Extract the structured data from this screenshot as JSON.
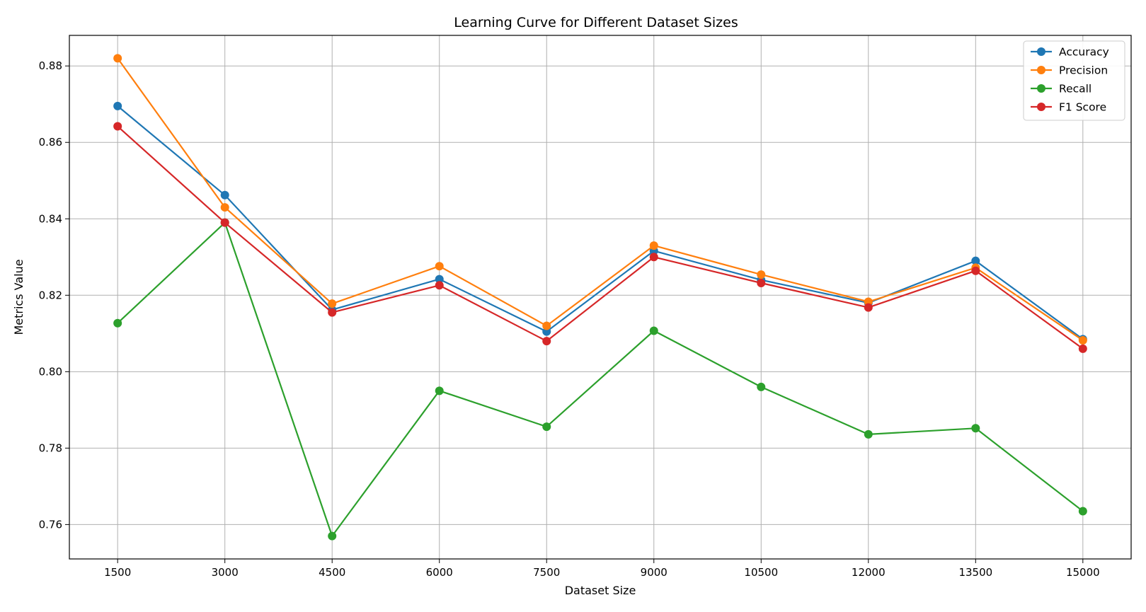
{
  "chart_data": {
    "type": "line",
    "title": "Learning Curve for Different Dataset Sizes",
    "xlabel": "Dataset Size",
    "ylabel": "Metrics Value",
    "x": [
      1500,
      3000,
      4500,
      6000,
      7500,
      9000,
      10500,
      12000,
      13500,
      15000
    ],
    "xticks": [
      "1500",
      "3000",
      "4500",
      "6000",
      "7500",
      "9000",
      "10500",
      "12000",
      "13500",
      "15000"
    ],
    "yticks": [
      "0.76",
      "0.78",
      "0.80",
      "0.82",
      "0.84",
      "0.86",
      "0.88"
    ],
    "ylim": [
      0.751,
      0.888
    ],
    "grid": true,
    "legend_position": "top-right",
    "series": [
      {
        "name": "Accuracy",
        "color": "#1f77b4",
        "marker": "circle",
        "values": [
          0.8695,
          0.8462,
          0.8162,
          0.8242,
          0.8105,
          0.8316,
          0.824,
          0.818,
          0.829,
          0.8085
        ]
      },
      {
        "name": "Precision",
        "color": "#ff7f0e",
        "marker": "circle",
        "values": [
          0.882,
          0.843,
          0.8178,
          0.8276,
          0.812,
          0.833,
          0.8254,
          0.8183,
          0.8272,
          0.8082
        ]
      },
      {
        "name": "Recall",
        "color": "#2ca02c",
        "marker": "circle",
        "values": [
          0.8127,
          0.839,
          0.757,
          0.795,
          0.7856,
          0.8107,
          0.796,
          0.7836,
          0.7852,
          0.7635
        ]
      },
      {
        "name": "F1 Score",
        "color": "#d62728",
        "marker": "circle",
        "values": [
          0.8642,
          0.839,
          0.8155,
          0.8226,
          0.808,
          0.83,
          0.8232,
          0.8168,
          0.8264,
          0.806
        ]
      }
    ]
  }
}
